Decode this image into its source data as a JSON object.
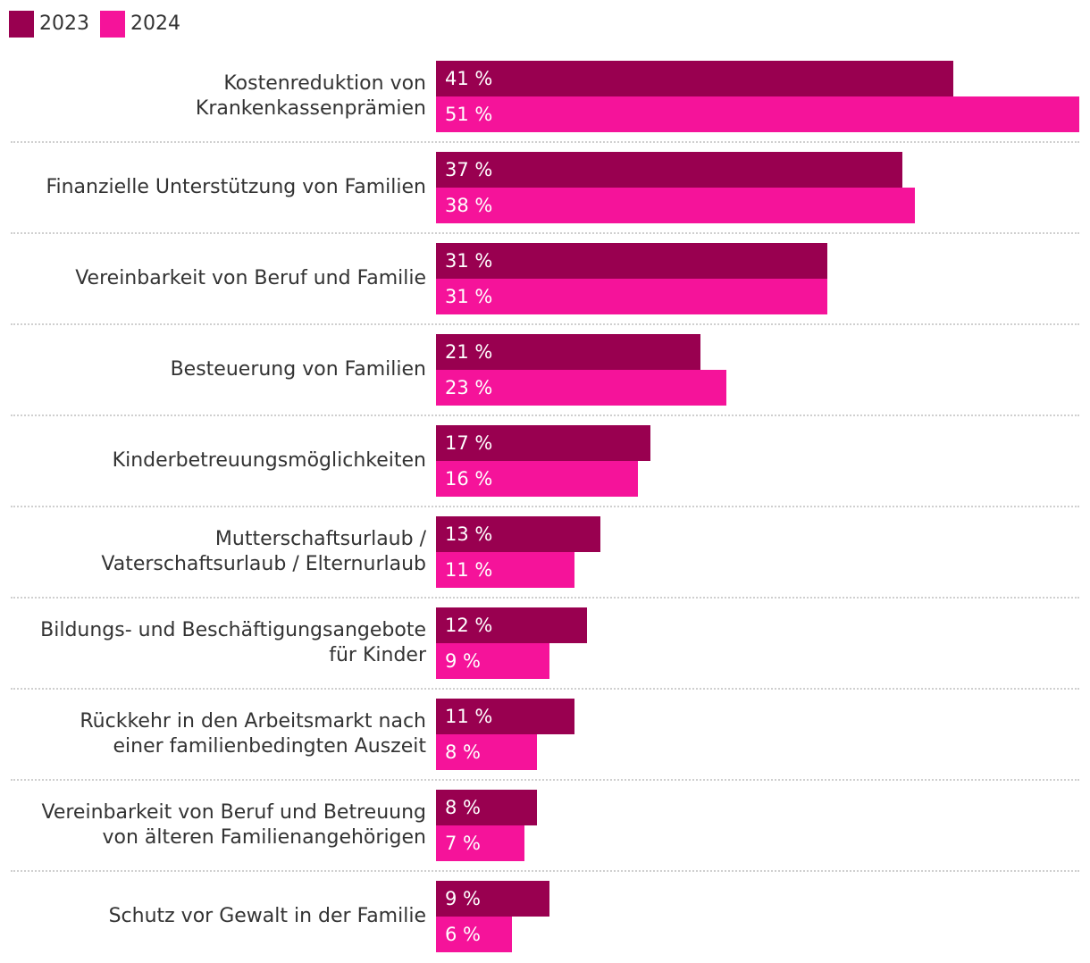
{
  "colors": {
    "series_2023": "#990050",
    "series_2024": "#f5139a"
  },
  "legend": [
    {
      "label": "2023",
      "color": "#990050"
    },
    {
      "label": "2024",
      "color": "#f5139a"
    }
  ],
  "chart_data": {
    "type": "bar",
    "orientation": "horizontal",
    "legend_placement": "top-left",
    "grid": false,
    "xlim": [
      0,
      51
    ],
    "categories": [
      [
        "Kostenreduktion von",
        "Krankenkassenprämien"
      ],
      [
        "Finanzielle Unterstützung von Familien"
      ],
      [
        "Vereinbarkeit von Beruf und Familie"
      ],
      [
        "Besteuerung von Familien"
      ],
      [
        "Kinderbetreuungsmöglichkeiten"
      ],
      [
        "Mutterschaftsurlaub /",
        "Vaterschaftsurlaub / Elternurlaub"
      ],
      [
        "Bildungs- und Beschäftigungsangebote",
        "für Kinder"
      ],
      [
        "Rückkehr in den Arbeitsmarkt nach",
        "einer familienbedingten Auszeit"
      ],
      [
        "Vereinbarkeit von Beruf und Betreuung",
        "von älteren Familienangehörigen"
      ],
      [
        "Schutz vor Gewalt in der Familie"
      ]
    ],
    "series": [
      {
        "name": "2023",
        "color": "#990050",
        "values": [
          41,
          37,
          31,
          21,
          17,
          13,
          12,
          11,
          8,
          9
        ],
        "labels": [
          "41 %",
          "37 %",
          "31 %",
          "21 %",
          "17 %",
          "13 %",
          "12 %",
          "11 %",
          "8 %",
          "9 %"
        ]
      },
      {
        "name": "2024",
        "color": "#f5139a",
        "values": [
          51,
          38,
          31,
          23,
          16,
          11,
          9,
          8,
          7,
          6
        ],
        "labels": [
          "51 %",
          "38 %",
          "31 %",
          "23 %",
          "16 %",
          "11 %",
          "9 %",
          "8 %",
          "7 %",
          "6 %"
        ]
      }
    ]
  }
}
